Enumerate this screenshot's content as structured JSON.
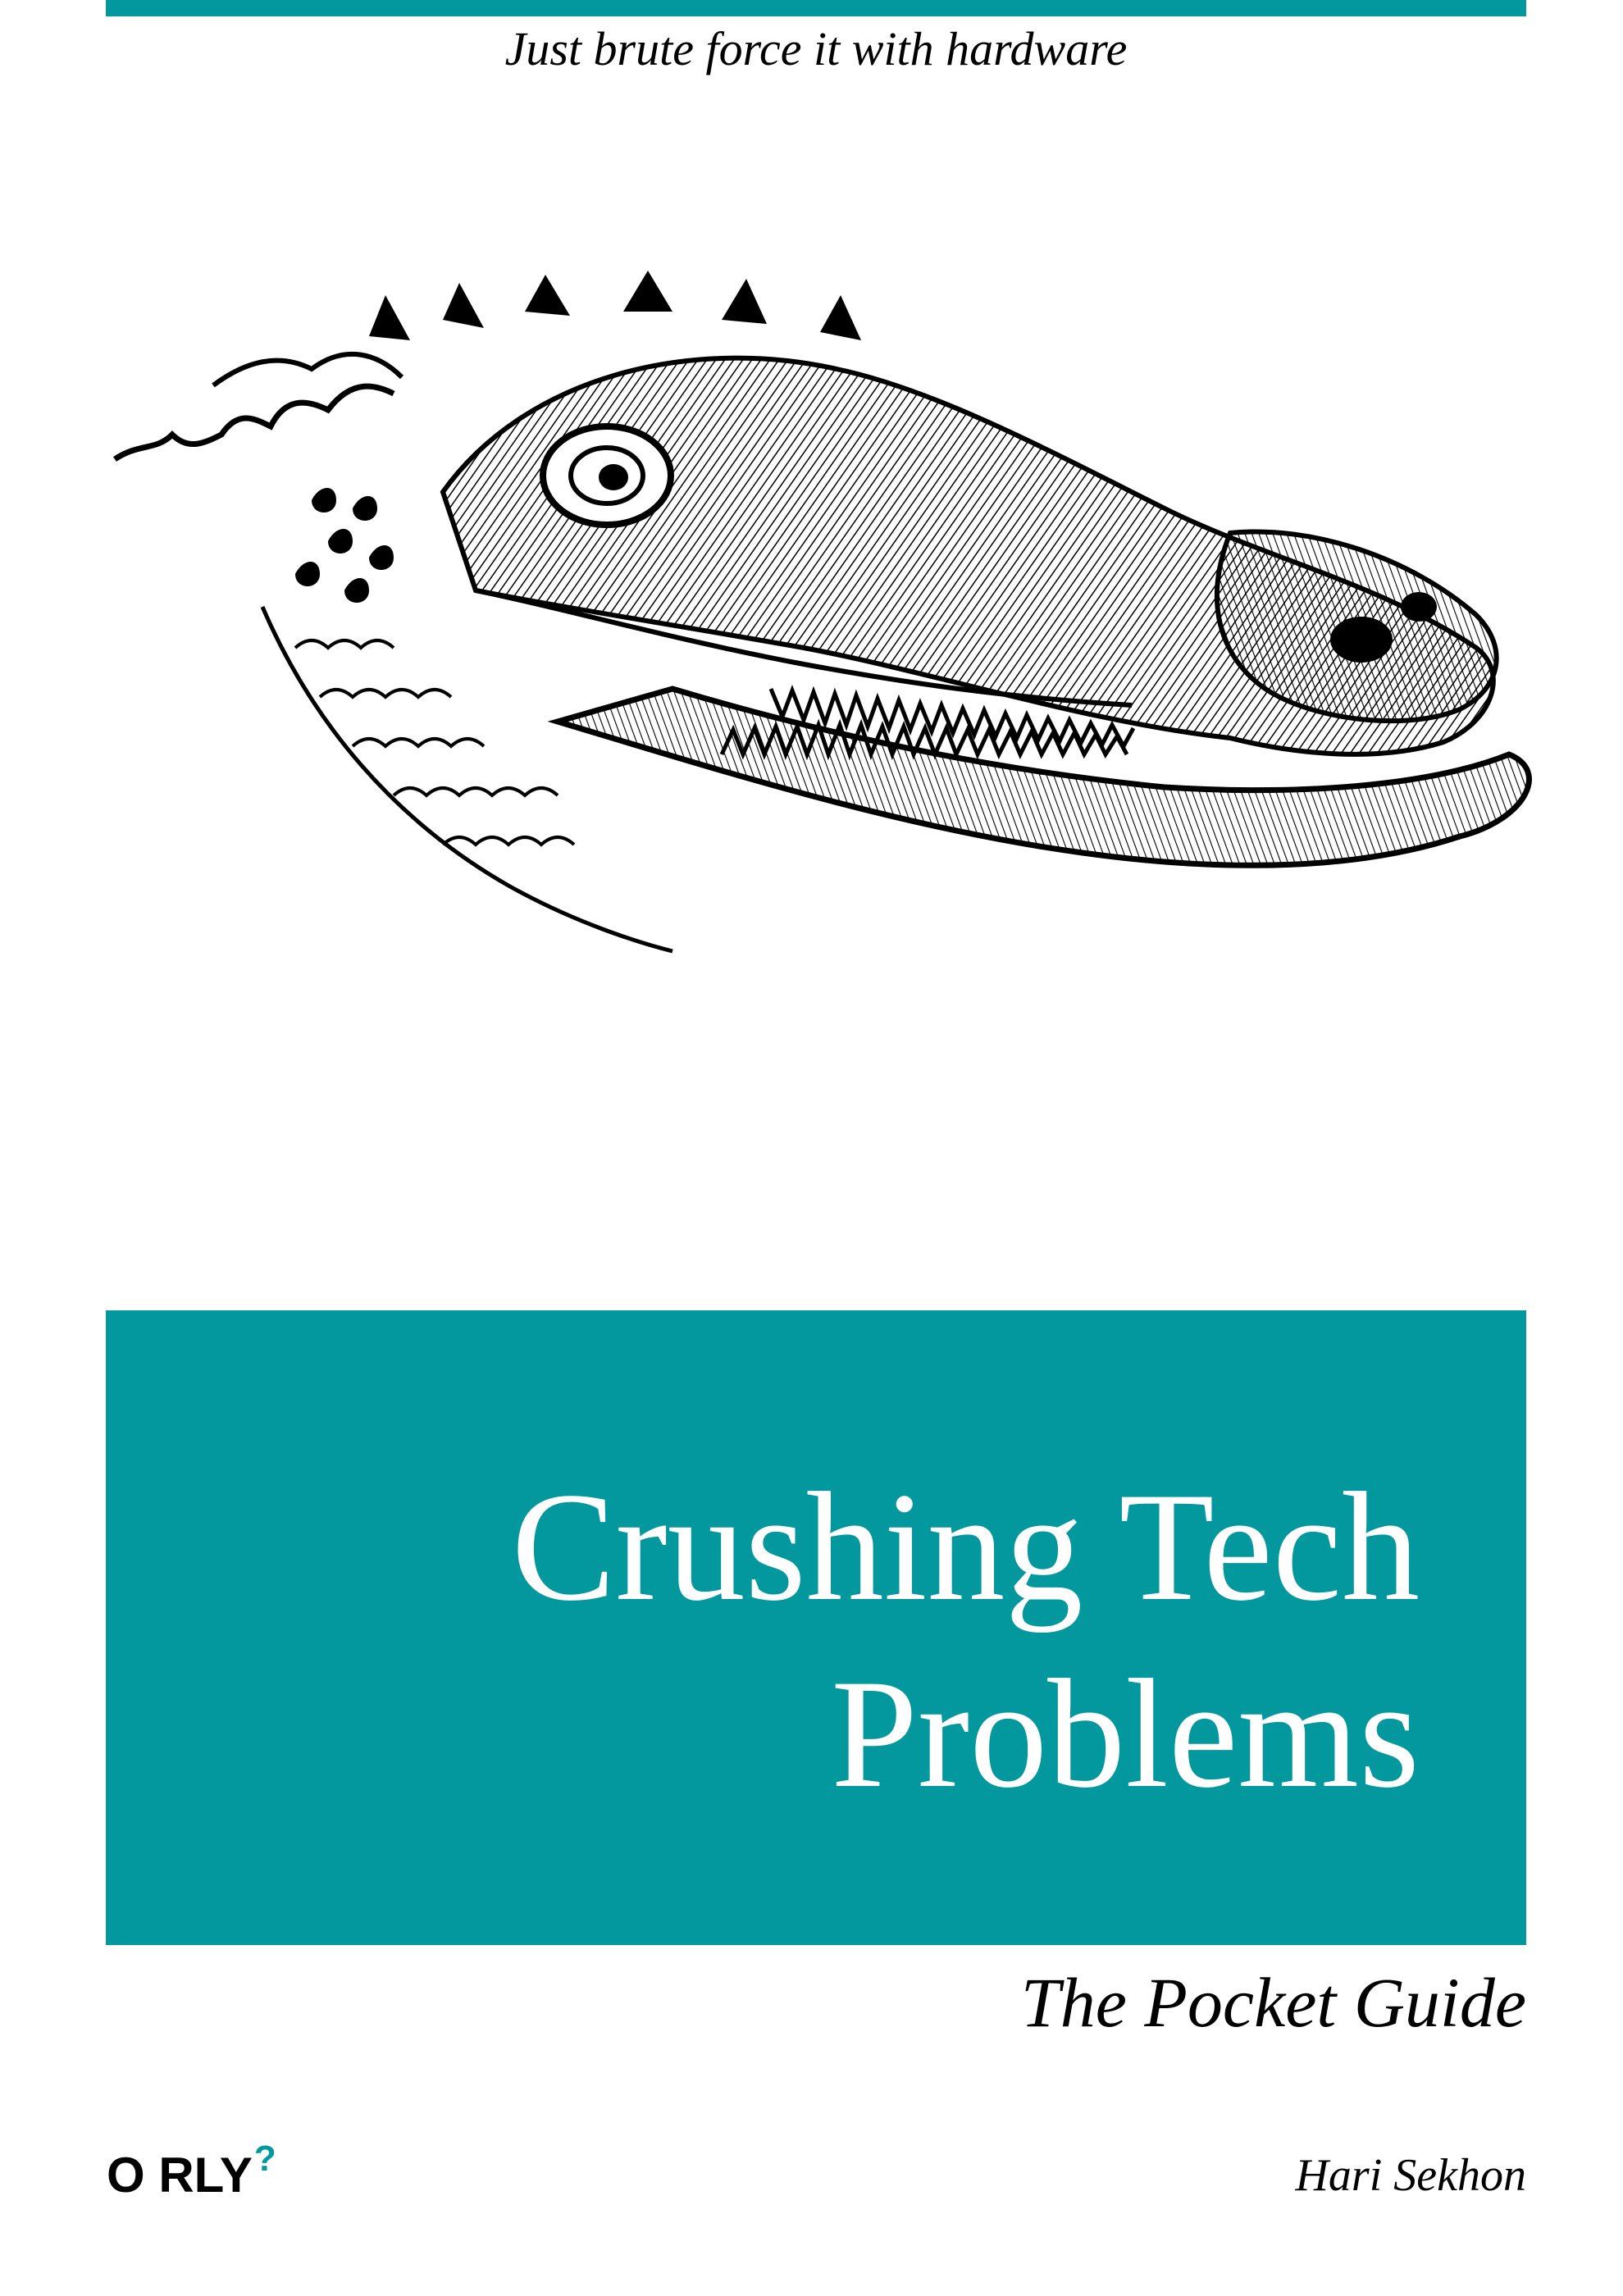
{
  "cover": {
    "tagline": "Just brute force it with hardware",
    "title": "Crushing Tech\nProblems",
    "series": "The Pocket Guide",
    "author": "Hari Sekhon",
    "publisher_logo": {
      "text": "O RLY",
      "mark": "?"
    },
    "illustration": "crocodile-head-engraving",
    "accent_color": "#03989e",
    "text_color": "#000000"
  }
}
